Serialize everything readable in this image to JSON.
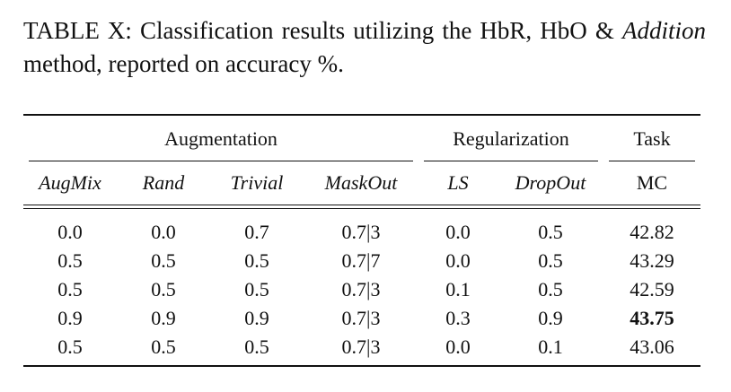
{
  "caption": {
    "prefix": "TABLE X: Classification results utilizing the HbR, HbO &",
    "italic_word": "Addition",
    "suffix": " method, reported on accuracy %."
  },
  "table": {
    "groups": [
      {
        "label": "Augmentation",
        "span": 4
      },
      {
        "label": "Regularization",
        "span": 2
      },
      {
        "label": "Task",
        "span": 1
      }
    ],
    "columns": [
      "AugMix",
      "Rand",
      "Trivial",
      "MaskOut",
      "LS",
      "DropOut",
      "MC"
    ],
    "rows": [
      {
        "cells": [
          "0.0",
          "0.0",
          "0.7",
          "0.7|3",
          "0.0",
          "0.5",
          "42.82"
        ],
        "best": false
      },
      {
        "cells": [
          "0.5",
          "0.5",
          "0.5",
          "0.7|7",
          "0.0",
          "0.5",
          "43.29"
        ],
        "best": false
      },
      {
        "cells": [
          "0.5",
          "0.5",
          "0.5",
          "0.7|3",
          "0.1",
          "0.5",
          "42.59"
        ],
        "best": false
      },
      {
        "cells": [
          "0.9",
          "0.9",
          "0.9",
          "0.7|3",
          "0.3",
          "0.9",
          "43.75"
        ],
        "best": true
      },
      {
        "cells": [
          "0.5",
          "0.5",
          "0.5",
          "0.7|3",
          "0.0",
          "0.1",
          "43.06"
        ],
        "best": false
      }
    ]
  }
}
